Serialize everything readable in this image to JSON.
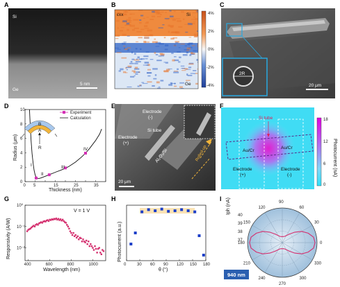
{
  "figure": {
    "panel_labels": [
      "A",
      "B",
      "C",
      "D",
      "E",
      "F",
      "G",
      "H",
      "I"
    ]
  },
  "panel_a": {
    "top_label": "Si",
    "bottom_label": "Ge",
    "scale": "5 nm"
  },
  "panel_b": {
    "labels": [
      "εxx",
      "Si",
      "Ge"
    ],
    "colorbar_ticks": [
      "4%",
      "2%",
      "0%",
      "-2%",
      "-4%"
    ],
    "colors": {
      "positive": "#e8742a",
      "negative": "#2e5fc6",
      "neutral": "#f5f5f5"
    }
  },
  "panel_c": {
    "radius_label": "2R",
    "scale": "20 μm"
  },
  "panel_d": {
    "legend": [
      "Experiment",
      "Calculation"
    ],
    "inset_labels": [
      "B",
      "A",
      "R"
    ],
    "roman": [
      "I",
      "II",
      "III",
      "IV"
    ]
  },
  "panel_e": {
    "labels": [
      "Electrode",
      "(-)",
      "Si tube",
      "Electrode",
      "(+)",
      "Rolled-up",
      "Al₂O₃/Si"
    ],
    "scale": "20 μm"
  },
  "panel_f": {
    "labels": [
      "Si tube",
      "Au/Cr",
      "Au/Cr",
      "Electrode",
      "(+)",
      "Electrode",
      "(-)"
    ],
    "colorbar_title": "Photocurrent (nA)",
    "colorbar_ticks": [
      "18",
      "12",
      "6",
      "0"
    ]
  },
  "panel_h": {
    "band_color": "#fbe3b5"
  },
  "panel_i": {
    "angle_labels": [
      "90",
      "120",
      "150",
      "180",
      "210",
      "240",
      "270",
      "300",
      "330",
      "0",
      "30",
      "60"
    ],
    "radial_ticks": [
      "40",
      "39",
      "38",
      "37"
    ],
    "ylabel": "Iph (nA)",
    "badge": "940 nm"
  },
  "chart_data": [
    {
      "panel": "D",
      "type": "line",
      "xlabel": "Thickness (nm)",
      "ylabel": "Radius (μm)",
      "xlim": [
        0,
        40
      ],
      "ylim": [
        0,
        10
      ],
      "x_ticks": [
        0,
        5,
        10,
        15,
        20,
        25,
        30,
        35,
        40
      ],
      "y_ticks": [
        0,
        2,
        4,
        6,
        8,
        10
      ],
      "series": [
        {
          "name": "Calculation",
          "x": [
            2.2,
            2.5,
            3,
            3.5,
            4,
            4.5,
            5,
            5.5,
            6,
            7,
            8,
            10,
            12,
            15,
            18,
            20,
            22,
            25,
            28,
            30,
            32,
            35,
            37,
            38
          ],
          "y": [
            10,
            8.2,
            5.7,
            3.9,
            2.6,
            1.6,
            0.95,
            0.6,
            0.46,
            0.44,
            0.52,
            0.74,
            0.95,
            1.3,
            1.62,
            1.85,
            2.15,
            2.7,
            3.4,
            3.95,
            4.6,
            5.7,
            6.6,
            7.3
          ]
        },
        {
          "name": "Experiment",
          "x": [
            5.5,
            12,
            20,
            30
          ],
          "y": [
            0.5,
            0.95,
            1.9,
            3.95
          ]
        }
      ]
    },
    {
      "panel": "G",
      "type": "scatter",
      "xlabel": "Wavelength (nm)",
      "ylabel": "Responsivity (A/W)",
      "annotation": "V = 1 V",
      "x_ticks": [
        400,
        600,
        800,
        1000
      ],
      "y_ticks": [
        "10⁰",
        "10⁻¹",
        "10⁻²"
      ],
      "x": [
        390,
        400,
        410,
        420,
        430,
        440,
        450,
        460,
        470,
        480,
        490,
        500,
        510,
        520,
        530,
        540,
        550,
        560,
        570,
        580,
        590,
        600,
        610,
        620,
        630,
        640,
        650,
        660,
        670,
        680,
        690,
        700,
        710,
        720,
        730,
        740,
        750,
        760,
        770,
        780,
        790,
        800,
        810,
        820,
        830,
        840,
        850,
        860,
        870,
        880,
        890,
        900,
        910,
        920,
        930,
        940,
        950,
        960,
        970,
        980,
        990,
        1000,
        1010,
        1020,
        1030,
        1040,
        1050,
        1060,
        1070,
        1080,
        1090,
        1100
      ],
      "y": [
        0.06,
        0.07,
        0.075,
        0.08,
        0.09,
        0.1,
        0.11,
        0.1,
        0.12,
        0.13,
        0.12,
        0.14,
        0.15,
        0.16,
        0.15,
        0.17,
        0.18,
        0.17,
        0.19,
        0.2,
        0.18,
        0.21,
        0.2,
        0.22,
        0.21,
        0.23,
        0.22,
        0.24,
        0.21,
        0.23,
        0.2,
        0.22,
        0.19,
        0.21,
        0.18,
        0.16,
        0.15,
        0.12,
        0.1,
        0.08,
        0.06,
        0.05,
        0.04,
        0.05,
        0.035,
        0.04,
        0.03,
        0.035,
        0.025,
        0.03,
        0.028,
        0.02,
        0.025,
        0.02,
        0.018,
        0.022,
        0.015,
        0.02,
        0.012,
        0.015,
        0.012,
        0.01,
        0.008,
        0.012,
        0.009,
        0.006,
        0.009,
        0.01,
        0.006,
        0.005,
        0.008,
        0.007
      ]
    },
    {
      "panel": "H",
      "type": "scatter",
      "xlabel": "θ (°)",
      "ylabel": "Photocurrent (a.u.)",
      "xlim": [
        0,
        180
      ],
      "x_ticks": [
        0,
        30,
        60,
        90,
        120,
        150,
        180
      ],
      "x": [
        10,
        20,
        35,
        50,
        65,
        80,
        95,
        110,
        125,
        140,
        155,
        165,
        175
      ],
      "y": [
        0.3,
        0.5,
        0.88,
        0.92,
        0.9,
        0.93,
        0.89,
        0.9,
        0.92,
        0.9,
        0.88,
        0.45,
        0.1
      ]
    },
    {
      "panel": "I",
      "type": "polar",
      "theta": [
        0,
        10,
        20,
        30,
        40,
        50,
        60,
        70,
        80,
        90,
        100,
        110,
        120,
        130,
        140,
        150,
        160,
        170,
        180,
        190,
        200,
        210,
        220,
        230,
        240,
        250,
        260,
        270,
        280,
        290,
        300,
        310,
        320,
        330,
        340,
        350
      ],
      "r": [
        39.6,
        39.5,
        39.1,
        38.6,
        38.0,
        37.5,
        37.2,
        37.05,
        37.0,
        37.0,
        37.0,
        37.05,
        37.2,
        37.5,
        38.0,
        38.6,
        39.1,
        39.5,
        39.6,
        39.5,
        39.1,
        38.6,
        38.0,
        37.5,
        37.2,
        37.05,
        37.0,
        37.0,
        37.0,
        37.05,
        37.2,
        37.5,
        38.0,
        38.6,
        39.1,
        39.5
      ]
    }
  ]
}
